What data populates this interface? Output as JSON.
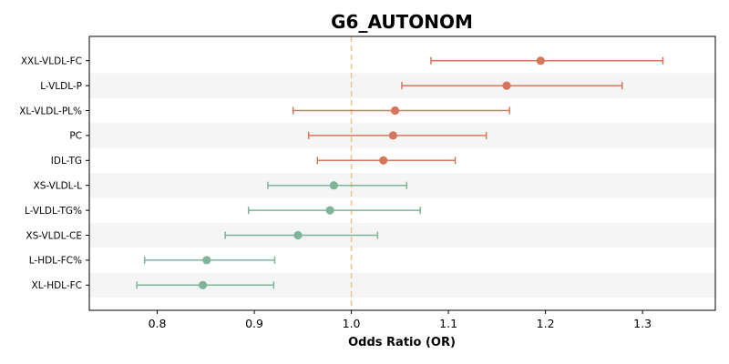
{
  "chart_data": {
    "type": "forest",
    "title": "G6_AUTONOM",
    "xlabel": "Odds Ratio (OR)",
    "ylabel": "",
    "xlim": [
      0.73,
      1.375
    ],
    "xticks": [
      0.8,
      0.9,
      1.0,
      1.1,
      1.2,
      1.3
    ],
    "xtick_labels": [
      "0.8",
      "0.9",
      "1.0",
      "1.1",
      "1.2",
      "1.3"
    ],
    "reference_line": 1.0,
    "reference_line_style": "dashed",
    "grid": false,
    "row_banding": true,
    "colors": {
      "above_one": "#d6775b",
      "below_one": "#7fb49a",
      "reference": "#f0c78a",
      "band": "#f5f5f5"
    },
    "rows": [
      {
        "label": "XXL-VLDL-FC",
        "or": 1.195,
        "ci_low": 1.082,
        "ci_high": 1.321
      },
      {
        "label": "L-VLDL-P",
        "or": 1.16,
        "ci_low": 1.052,
        "ci_high": 1.279
      },
      {
        "label": "XL-VLDL-PL%",
        "or": 1.045,
        "ci_low": 0.94,
        "ci_high": 1.163
      },
      {
        "label": "PC",
        "or": 1.043,
        "ci_low": 0.956,
        "ci_high": 1.139
      },
      {
        "label": "IDL-TG",
        "or": 1.033,
        "ci_low": 0.965,
        "ci_high": 1.107
      },
      {
        "label": "XS-VLDL-L",
        "or": 0.982,
        "ci_low": 0.914,
        "ci_high": 1.057
      },
      {
        "label": "L-VLDL-TG%",
        "or": 0.978,
        "ci_low": 0.894,
        "ci_high": 1.071
      },
      {
        "label": "XS-VLDL-CE",
        "or": 0.945,
        "ci_low": 0.87,
        "ci_high": 1.027
      },
      {
        "label": "L-HDL-FC%",
        "or": 0.851,
        "ci_low": 0.787,
        "ci_high": 0.921
      },
      {
        "label": "XL-HDL-FC",
        "or": 0.847,
        "ci_low": 0.779,
        "ci_high": 0.92
      }
    ]
  }
}
